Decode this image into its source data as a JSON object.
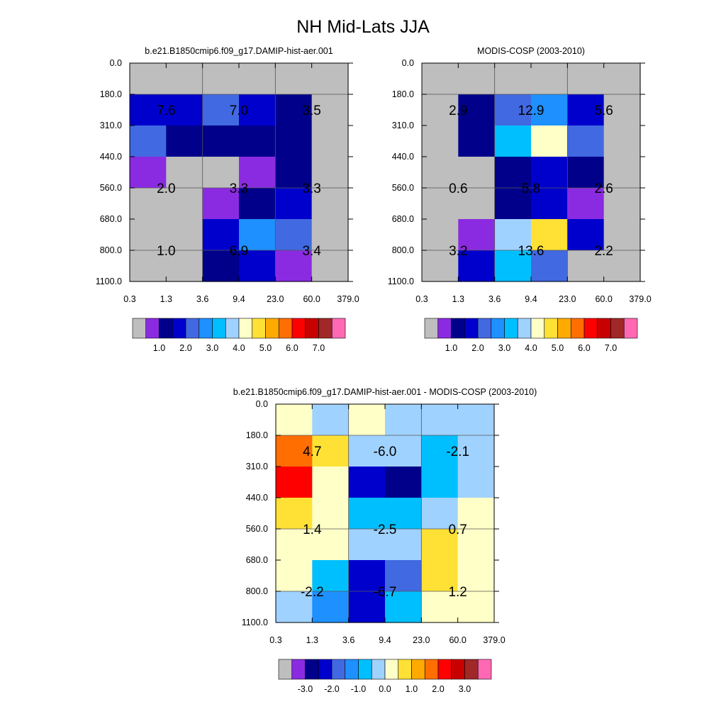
{
  "figure": {
    "title": "NH Mid-Lats JJA"
  },
  "chart_data": [
    {
      "type": "heatmap",
      "title": "b.e21.B1850cmip6.f09_g17.DAMIP-hist-aer.001",
      "x_bin_edges": [
        "0.3",
        "1.3",
        "3.6",
        "9.4",
        "23.0",
        "60.0",
        "379.0"
      ],
      "y_bin_edges": [
        "0.0",
        "180.0",
        "310.0",
        "440.0",
        "560.0",
        "680.0",
        "800.0",
        "1100.0"
      ],
      "missing_color": "#bebebe",
      "cell_colors": [
        [
          "#bebebe",
          "#bebebe",
          "#bebebe",
          "#bebebe",
          "#bebebe",
          "#bebebe"
        ],
        [
          "#0000cd",
          "#0000cd",
          "#4169e1",
          "#0000cd",
          "#00008b",
          "#bebebe"
        ],
        [
          "#4169e1",
          "#00008b",
          "#00008b",
          "#00008b",
          "#00008b",
          "#bebebe"
        ],
        [
          "#8a2be2",
          "#bebebe",
          "#bebebe",
          "#8a2be2",
          "#00008b",
          "#bebebe"
        ],
        [
          "#bebebe",
          "#bebebe",
          "#8a2be2",
          "#00008b",
          "#0000cd",
          "#bebebe"
        ],
        [
          "#bebebe",
          "#bebebe",
          "#0000cd",
          "#1e90ff",
          "#4169e1",
          "#bebebe"
        ],
        [
          "#bebebe",
          "#bebebe",
          "#00008b",
          "#0000cd",
          "#8a2be2",
          "#bebebe"
        ]
      ],
      "block_values": [
        [
          "7.6",
          "7.0",
          "3.5"
        ],
        [
          "2.0",
          "3.3",
          "3.3"
        ],
        [
          "1.0",
          "6.9",
          "3.4"
        ]
      ],
      "colorbar": {
        "colors": [
          "#bebebe",
          "#8a2be2",
          "#00008b",
          "#0000cd",
          "#4169e1",
          "#1e90ff",
          "#00bfff",
          "#a0d2ff",
          "#ffffc8",
          "#ffe135",
          "#ffaa00",
          "#ff6e00",
          "#ff0000",
          "#c80000",
          "#a02828",
          "#ff69b4"
        ],
        "labels": [
          "1.0",
          "2.0",
          "3.0",
          "4.0",
          "5.0",
          "6.0",
          "7.0"
        ],
        "label_positions": [
          2,
          4,
          6,
          8,
          10,
          12,
          14
        ]
      }
    },
    {
      "type": "heatmap",
      "title": "MODIS-COSP (2003-2010)",
      "x_bin_edges": [
        "0.3",
        "1.3",
        "3.6",
        "9.4",
        "23.0",
        "60.0",
        "379.0"
      ],
      "y_bin_edges": [
        "0.0",
        "180.0",
        "310.0",
        "440.0",
        "560.0",
        "680.0",
        "800.0",
        "1100.0"
      ],
      "missing_color": "#bebebe",
      "cell_colors": [
        [
          "#bebebe",
          "#bebebe",
          "#bebebe",
          "#bebebe",
          "#bebebe",
          "#bebebe"
        ],
        [
          "#bebebe",
          "#00008b",
          "#4169e1",
          "#1e90ff",
          "#0000cd",
          "#bebebe"
        ],
        [
          "#bebebe",
          "#00008b",
          "#00bfff",
          "#ffffc8",
          "#4169e1",
          "#bebebe"
        ],
        [
          "#bebebe",
          "#bebebe",
          "#00008b",
          "#0000cd",
          "#00008b",
          "#bebebe"
        ],
        [
          "#bebebe",
          "#bebebe",
          "#00008b",
          "#0000cd",
          "#8a2be2",
          "#bebebe"
        ],
        [
          "#bebebe",
          "#8a2be2",
          "#a0d2ff",
          "#ffe135",
          "#0000cd",
          "#bebebe"
        ],
        [
          "#bebebe",
          "#0000cd",
          "#00bfff",
          "#4169e1",
          "#bebebe",
          "#bebebe"
        ]
      ],
      "block_values": [
        [
          "2.9",
          "12.9",
          "5.6"
        ],
        [
          "0.6",
          "5.8",
          "2.6"
        ],
        [
          "3.2",
          "13.6",
          "2.2"
        ]
      ],
      "colorbar": {
        "colors": [
          "#bebebe",
          "#8a2be2",
          "#00008b",
          "#0000cd",
          "#4169e1",
          "#1e90ff",
          "#00bfff",
          "#a0d2ff",
          "#ffffc8",
          "#ffe135",
          "#ffaa00",
          "#ff6e00",
          "#ff0000",
          "#c80000",
          "#a02828",
          "#ff69b4"
        ],
        "labels": [
          "1.0",
          "2.0",
          "3.0",
          "4.0",
          "5.0",
          "6.0",
          "7.0"
        ],
        "label_positions": [
          2,
          4,
          6,
          8,
          10,
          12,
          14
        ]
      }
    },
    {
      "type": "heatmap",
      "title": "b.e21.B1850cmip6.f09_g17.DAMIP-hist-aer.001 - MODIS-COSP (2003-2010)",
      "x_bin_edges": [
        "0.3",
        "1.3",
        "3.6",
        "9.4",
        "23.0",
        "60.0",
        "379.0"
      ],
      "y_bin_edges": [
        "0.0",
        "180.0",
        "310.0",
        "440.0",
        "560.0",
        "680.0",
        "800.0",
        "1100.0"
      ],
      "missing_color": "#bebebe",
      "cell_colors": [
        [
          "#ffffc8",
          "#a0d2ff",
          "#ffffc8",
          "#a0d2ff",
          "#a0d2ff",
          "#a0d2ff"
        ],
        [
          "#ff6e00",
          "#ffe135",
          "#a0d2ff",
          "#a0d2ff",
          "#00bfff",
          "#a0d2ff"
        ],
        [
          "#ff0000",
          "#ffffc8",
          "#0000cd",
          "#00008b",
          "#00bfff",
          "#a0d2ff"
        ],
        [
          "#ffe135",
          "#ffffc8",
          "#00bfff",
          "#00bfff",
          "#a0d2ff",
          "#ffffc8"
        ],
        [
          "#ffffc8",
          "#ffffc8",
          "#a0d2ff",
          "#a0d2ff",
          "#ffe135",
          "#ffffc8"
        ],
        [
          "#ffffc8",
          "#00bfff",
          "#0000cd",
          "#4169e1",
          "#ffe135",
          "#ffffc8"
        ],
        [
          "#a0d2ff",
          "#1e90ff",
          "#0000cd",
          "#00bfff",
          "#ffffc8",
          "#ffffc8"
        ]
      ],
      "block_values": [
        [
          "4.7",
          "-6.0",
          "-2.1"
        ],
        [
          "1.4",
          "-2.5",
          "0.7"
        ],
        [
          "-2.2",
          "-6.7",
          "1.2"
        ]
      ],
      "colorbar": {
        "colors": [
          "#bebebe",
          "#8a2be2",
          "#00008b",
          "#0000cd",
          "#4169e1",
          "#1e90ff",
          "#00bfff",
          "#a0d2ff",
          "#ffffc8",
          "#ffe135",
          "#ffaa00",
          "#ff6e00",
          "#ff0000",
          "#c80000",
          "#a02828",
          "#ff69b4"
        ],
        "labels": [
          "-3.0",
          "-2.0",
          "-1.0",
          "0.0",
          "1.0",
          "2.0",
          "3.0"
        ],
        "label_positions": [
          2,
          4,
          6,
          8,
          10,
          12,
          14
        ]
      }
    }
  ]
}
